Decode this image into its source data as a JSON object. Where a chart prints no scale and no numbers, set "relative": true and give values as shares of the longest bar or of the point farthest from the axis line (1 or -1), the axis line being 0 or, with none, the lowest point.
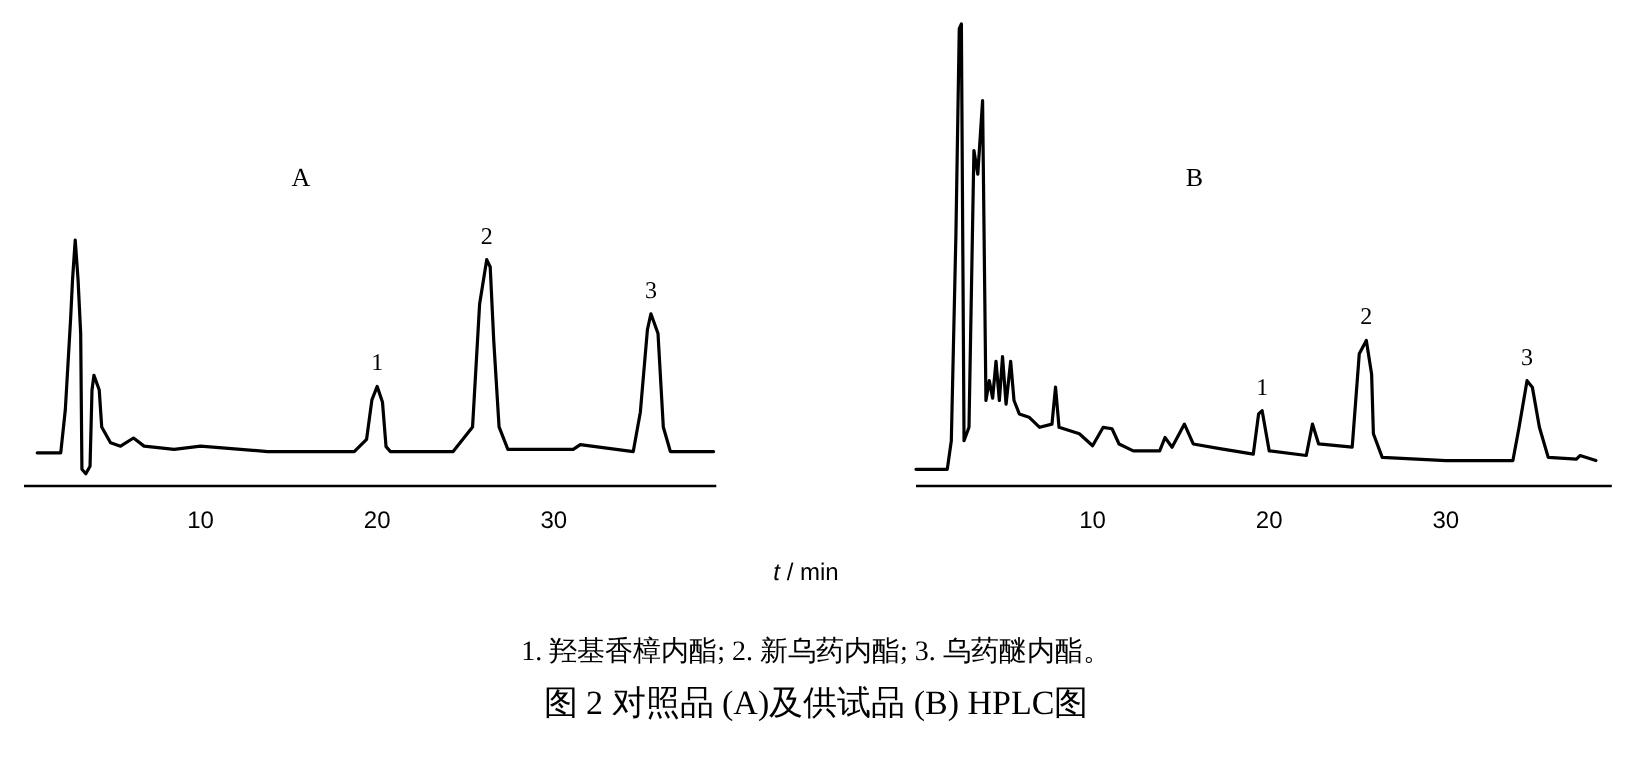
{
  "chart_data": [
    {
      "type": "line",
      "title": "A",
      "xlabel": "t / min",
      "relative": true,
      "xlim": [
        0,
        39.2
      ],
      "xticks": [
        10,
        20,
        30
      ],
      "grid": false,
      "tick_labels": "x",
      "annotations": [
        {
          "text": "1",
          "x": 20.0,
          "y": 0.405
        },
        {
          "text": "2",
          "x": 26.2,
          "y": 0.92
        },
        {
          "text": "3",
          "x": 35.5,
          "y": 0.7
        },
        "1. 羟基香樟内酯; 2. 新乌药内酯; 3. 乌药醚内酯。",
        "图 2   对照品 (A)及供试品 (B) HPLC图"
      ],
      "series": [
        {
          "color": "#000000",
          "x": [
            0.75,
            2.08,
            2.34,
            2.64,
            2.75,
            2.9,
            3.06,
            3.21,
            3.28,
            3.5,
            3.74,
            3.85,
            3.96,
            4.26,
            4.4,
            4.9,
            5.47,
            6.2,
            6.8,
            8.5,
            10,
            13.8,
            18.7,
            19.4,
            19.7,
            20.0,
            20.3,
            20.5,
            20.75,
            24.3,
            25.4,
            25.8,
            26.2,
            26.4,
            26.6,
            26.9,
            27.4,
            31.1,
            31.5,
            34.5,
            34.9,
            35.3,
            35.5,
            35.9,
            36.2,
            36.6,
            39.05
          ],
          "values": [
            0.135,
            0.135,
            0.31,
            0.68,
            0.84,
            1.0,
            0.84,
            0.62,
            0.068,
            0.05,
            0.08,
            0.39,
            0.45,
            0.39,
            0.24,
            0.176,
            0.162,
            0.195,
            0.162,
            0.149,
            0.162,
            0.14,
            0.14,
            0.19,
            0.35,
            0.405,
            0.34,
            0.16,
            0.14,
            0.14,
            0.24,
            0.74,
            0.92,
            0.89,
            0.59,
            0.24,
            0.149,
            0.149,
            0.168,
            0.14,
            0.3,
            0.635,
            0.7,
            0.62,
            0.24,
            0.14,
            0.14
          ]
        }
      ]
    },
    {
      "type": "line",
      "title": "B",
      "relative": true,
      "xlim": [
        0,
        39.4
      ],
      "xticks": [
        10,
        20,
        30
      ],
      "grid": false,
      "tick_labels": "x",
      "annotations": [
        {
          "text": "1",
          "x": 19.6,
          "y": 0.163
        },
        {
          "text": "2",
          "x": 25.5,
          "y": 0.315
        },
        {
          "text": "3",
          "x": 34.6,
          "y": 0.228
        }
      ],
      "series": [
        {
          "color": "#000000",
          "x": [
            0,
            1.77,
            2.0,
            2.26,
            2.45,
            2.57,
            2.72,
            3.0,
            3.28,
            3.5,
            3.77,
            3.96,
            4.15,
            4.34,
            4.53,
            4.72,
            4.9,
            5.1,
            5.36,
            5.55,
            5.85,
            6.4,
            7.0,
            7.7,
            7.9,
            8.1,
            9.25,
            10,
            10.6,
            11.1,
            11.5,
            12.3,
            13.8,
            14.1,
            14.5,
            15.2,
            15.7,
            17.2,
            19.1,
            19.4,
            19.6,
            20.0,
            22.1,
            22.45,
            22.8,
            24.7,
            25.1,
            25.5,
            25.8,
            25.9,
            26.4,
            30,
            33.8,
            34.15,
            34.6,
            34.9,
            35.3,
            35.8,
            37.4,
            37.6,
            38.5
          ],
          "values": [
            0.036,
            0.036,
            0.098,
            0.545,
            0.99,
            1.0,
            0.098,
            0.127,
            0.726,
            0.675,
            0.834,
            0.185,
            0.228,
            0.19,
            0.27,
            0.185,
            0.28,
            0.177,
            0.27,
            0.185,
            0.156,
            0.149,
            0.127,
            0.134,
            0.214,
            0.127,
            0.113,
            0.087,
            0.127,
            0.124,
            0.091,
            0.076,
            0.076,
            0.105,
            0.084,
            0.134,
            0.091,
            0.081,
            0.069,
            0.156,
            0.163,
            0.076,
            0.066,
            0.134,
            0.091,
            0.084,
            0.286,
            0.315,
            0.242,
            0.113,
            0.062,
            0.055,
            0.055,
            0.127,
            0.228,
            0.214,
            0.127,
            0.062,
            0.058,
            0.066,
            0.055
          ]
        }
      ]
    }
  ]
}
